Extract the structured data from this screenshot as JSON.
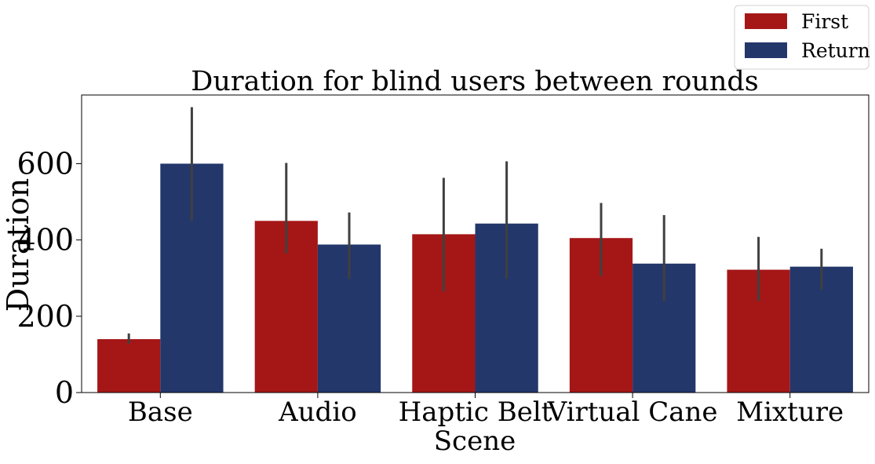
{
  "chart_data": {
    "type": "bar",
    "title": "Duration for blind users between rounds",
    "xlabel": "Scene",
    "ylabel": "Duration",
    "ylim": [
      0,
      780
    ],
    "yticks": [
      0,
      200,
      400,
      600
    ],
    "categories": [
      "Base",
      "Audio",
      "Haptic Belt",
      "Virtual Cane",
      "Mixture"
    ],
    "series": [
      {
        "name": "First",
        "color": "#a51717",
        "values": [
          140,
          450,
          415,
          405,
          322
        ],
        "error_low": [
          128,
          365,
          265,
          305,
          240
        ],
        "error_high": [
          155,
          602,
          563,
          497,
          408
        ]
      },
      {
        "name": "Return",
        "color": "#24376b",
        "values": [
          600,
          388,
          443,
          338,
          330
        ],
        "error_low": [
          450,
          298,
          298,
          240,
          270
        ],
        "error_high": [
          748,
          472,
          606,
          465,
          377
        ]
      }
    ],
    "error_bar_color": "#404040",
    "grid": false,
    "legend_position": "top-right (outside plot)"
  }
}
